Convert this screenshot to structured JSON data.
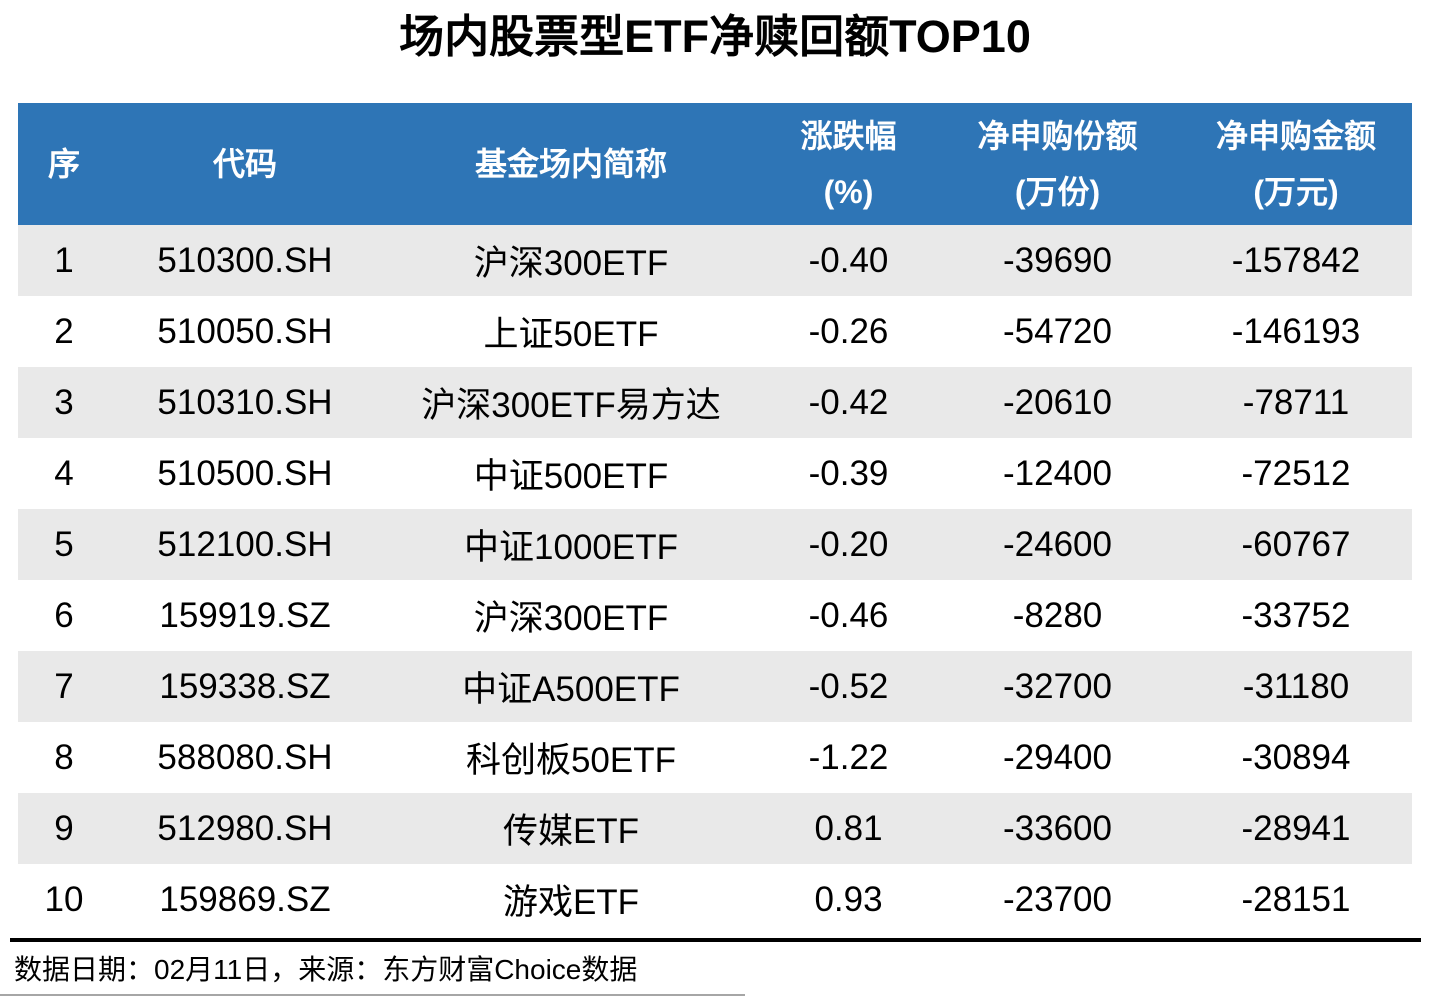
{
  "title": "场内股票型ETF净赎回额TOP10",
  "colors": {
    "header_bg": "#2E75B6",
    "header_text": "#FFFFFF",
    "row_alt_bg": "#E9E9E9",
    "rule": "#000000"
  },
  "table": {
    "headers": [
      {
        "line1": "序",
        "line2": ""
      },
      {
        "line1": "代码",
        "line2": ""
      },
      {
        "line1": "基金场内简称",
        "line2": ""
      },
      {
        "line1": "涨跌幅",
        "line2": "(%)"
      },
      {
        "line1": "净申购份额",
        "line2": "(万份)"
      },
      {
        "line1": "净申购金额",
        "line2": "(万元)"
      }
    ],
    "rows": [
      {
        "no": "1",
        "code": "510300.SH",
        "name": "沪深300ETF",
        "chg": "-0.40",
        "shares": "-39690",
        "amount": "-157842"
      },
      {
        "no": "2",
        "code": "510050.SH",
        "name": "上证50ETF",
        "chg": "-0.26",
        "shares": "-54720",
        "amount": "-146193"
      },
      {
        "no": "3",
        "code": "510310.SH",
        "name": "沪深300ETF易方达",
        "chg": "-0.42",
        "shares": "-20610",
        "amount": "-78711"
      },
      {
        "no": "4",
        "code": "510500.SH",
        "name": "中证500ETF",
        "chg": "-0.39",
        "shares": "-12400",
        "amount": "-72512"
      },
      {
        "no": "5",
        "code": "512100.SH",
        "name": "中证1000ETF",
        "chg": "-0.20",
        "shares": "-24600",
        "amount": "-60767"
      },
      {
        "no": "6",
        "code": "159919.SZ",
        "name": "沪深300ETF",
        "chg": "-0.46",
        "shares": "-8280",
        "amount": "-33752"
      },
      {
        "no": "7",
        "code": "159338.SZ",
        "name": "中证A500ETF",
        "chg": "-0.52",
        "shares": "-32700",
        "amount": "-31180"
      },
      {
        "no": "8",
        "code": "588080.SH",
        "name": "科创板50ETF",
        "chg": "-1.22",
        "shares": "-29400",
        "amount": "-30894"
      },
      {
        "no": "9",
        "code": "512980.SH",
        "name": "传媒ETF",
        "chg": "0.81",
        "shares": "-33600",
        "amount": "-28941"
      },
      {
        "no": "10",
        "code": "159869.SZ",
        "name": "游戏ETF",
        "chg": "0.93",
        "shares": "-23700",
        "amount": "-28151"
      }
    ]
  },
  "footer": {
    "text": "数据日期：02月11日，来源：东方财富Choice数据"
  },
  "chart_data": {
    "type": "table",
    "title": "场内股票型ETF净赎回额TOP10",
    "columns": [
      "序",
      "代码",
      "基金场内简称",
      "涨跌幅(%)",
      "净申购份额(万份)",
      "净申购金额(万元)"
    ],
    "rows": [
      [
        1,
        "510300.SH",
        "沪深300ETF",
        -0.4,
        -39690,
        -157842
      ],
      [
        2,
        "510050.SH",
        "上证50ETF",
        -0.26,
        -54720,
        -146193
      ],
      [
        3,
        "510310.SH",
        "沪深300ETF易方达",
        -0.42,
        -20610,
        -78711
      ],
      [
        4,
        "510500.SH",
        "中证500ETF",
        -0.39,
        -12400,
        -72512
      ],
      [
        5,
        "512100.SH",
        "中证1000ETF",
        -0.2,
        -24600,
        -60767
      ],
      [
        6,
        "159919.SZ",
        "沪深300ETF",
        -0.46,
        -8280,
        -33752
      ],
      [
        7,
        "159338.SZ",
        "中证A500ETF",
        -0.52,
        -32700,
        -31180
      ],
      [
        8,
        "588080.SH",
        "科创板50ETF",
        -1.22,
        -29400,
        -30894
      ],
      [
        9,
        "512980.SH",
        "传媒ETF",
        0.81,
        -33600,
        -28941
      ],
      [
        10,
        "159869.SZ",
        "游戏ETF",
        0.93,
        -23700,
        -28151
      ]
    ],
    "source_note": "数据日期：02月11日，来源：东方财富Choice数据"
  }
}
